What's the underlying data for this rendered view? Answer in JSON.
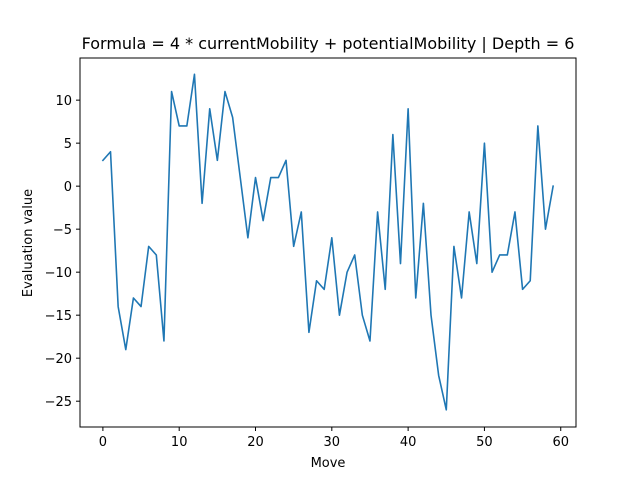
{
  "chart_data": {
    "type": "line",
    "title": "Formula = 4 * currentMobility + potentialMobility | Depth = 6",
    "xlabel": "Move",
    "ylabel": "Evaluation value",
    "xlim": [
      -3,
      62
    ],
    "ylim": [
      -28.0,
      14.9
    ],
    "xticks": [
      0,
      10,
      20,
      30,
      40,
      50,
      60
    ],
    "yticks": [
      -25,
      -20,
      -15,
      -10,
      -5,
      0,
      5,
      10
    ],
    "grid": false,
    "series": [
      {
        "color": "#1f77b4",
        "x": [
          0,
          1,
          2,
          3,
          4,
          5,
          6,
          7,
          8,
          9,
          10,
          11,
          12,
          13,
          14,
          15,
          16,
          17,
          18,
          19,
          20,
          21,
          22,
          23,
          24,
          25,
          26,
          27,
          28,
          29,
          30,
          31,
          32,
          33,
          34,
          35,
          36,
          37,
          38,
          39,
          40,
          41,
          42,
          43,
          44,
          45,
          46,
          47,
          48,
          49,
          50,
          51,
          52,
          53,
          54,
          55,
          56,
          57,
          58,
          59
        ],
        "values": [
          3,
          4,
          -14,
          -19,
          -13,
          -14,
          -7,
          -8,
          -18,
          11,
          7,
          7,
          13,
          -2,
          9,
          3,
          11,
          8,
          1,
          -6,
          1,
          -4,
          1,
          1,
          3,
          -7,
          -3,
          -17,
          -11,
          -12,
          -6,
          -15,
          -10,
          -8,
          -15,
          -18,
          -3,
          -12,
          6,
          -9,
          9,
          -13,
          -2,
          -15,
          -22,
          -26,
          -7,
          -13,
          -3,
          -9,
          5,
          -10,
          -8,
          -8,
          -3,
          -12,
          -11,
          7,
          -5,
          0
        ]
      }
    ]
  }
}
